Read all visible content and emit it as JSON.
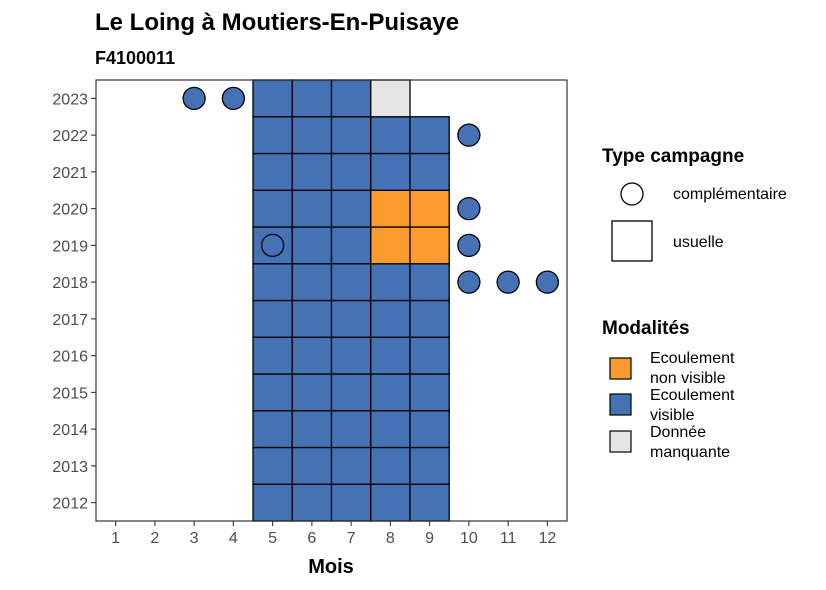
{
  "chart_data": {
    "type": "heatmap",
    "title": "Le Loing à Moutiers-En-Puisaye",
    "subtitle": "F4100011",
    "xlabel": "Mois",
    "ylabel": "",
    "x_ticks": [
      "1",
      "2",
      "3",
      "4",
      "5",
      "6",
      "7",
      "8",
      "9",
      "10",
      "11",
      "12"
    ],
    "y_ticks": [
      "2012",
      "2013",
      "2014",
      "2015",
      "2016",
      "2017",
      "2018",
      "2019",
      "2020",
      "2021",
      "2022",
      "2023"
    ],
    "xlim": [
      0.5,
      12.5
    ],
    "ylim": [
      2011.5,
      2023.5
    ],
    "grid": false,
    "legend_position": "right",
    "legend": {
      "campaign_title": "Type campagne",
      "campaign_items": [
        {
          "key": "complementaire",
          "label": "complémentaire"
        },
        {
          "key": "usuelle",
          "label": "usuelle"
        }
      ],
      "modality_title": "Modalités",
      "modality_items": [
        {
          "key": "ecoulement_non_visible",
          "line1": "Ecoulement",
          "line2": "non visible"
        },
        {
          "key": "ecoulement_visible",
          "line1": "Ecoulement",
          "line2": "visible"
        },
        {
          "key": "donnee_manquante",
          "line1": "Donnée",
          "line2": "manquante"
        }
      ]
    },
    "colors": {
      "ecoulement_visible": "#4472b4",
      "ecoulement_non_visible": "#fb9a2f",
      "donnee_manquante": "#e5e5e5"
    },
    "usuelle_cells": [
      {
        "year": 2012,
        "month": 5,
        "modality": "ecoulement_visible"
      },
      {
        "year": 2012,
        "month": 6,
        "modality": "ecoulement_visible"
      },
      {
        "year": 2012,
        "month": 7,
        "modality": "ecoulement_visible"
      },
      {
        "year": 2012,
        "month": 8,
        "modality": "ecoulement_visible"
      },
      {
        "year": 2012,
        "month": 9,
        "modality": "ecoulement_visible"
      },
      {
        "year": 2013,
        "month": 5,
        "modality": "ecoulement_visible"
      },
      {
        "year": 2013,
        "month": 6,
        "modality": "ecoulement_visible"
      },
      {
        "year": 2013,
        "month": 7,
        "modality": "ecoulement_visible"
      },
      {
        "year": 2013,
        "month": 8,
        "modality": "ecoulement_visible"
      },
      {
        "year": 2013,
        "month": 9,
        "modality": "ecoulement_visible"
      },
      {
        "year": 2014,
        "month": 5,
        "modality": "ecoulement_visible"
      },
      {
        "year": 2014,
        "month": 6,
        "modality": "ecoulement_visible"
      },
      {
        "year": 2014,
        "month": 7,
        "modality": "ecoulement_visible"
      },
      {
        "year": 2014,
        "month": 8,
        "modality": "ecoulement_visible"
      },
      {
        "year": 2014,
        "month": 9,
        "modality": "ecoulement_visible"
      },
      {
        "year": 2015,
        "month": 5,
        "modality": "ecoulement_visible"
      },
      {
        "year": 2015,
        "month": 6,
        "modality": "ecoulement_visible"
      },
      {
        "year": 2015,
        "month": 7,
        "modality": "ecoulement_visible"
      },
      {
        "year": 2015,
        "month": 8,
        "modality": "ecoulement_visible"
      },
      {
        "year": 2015,
        "month": 9,
        "modality": "ecoulement_visible"
      },
      {
        "year": 2016,
        "month": 5,
        "modality": "ecoulement_visible"
      },
      {
        "year": 2016,
        "month": 6,
        "modality": "ecoulement_visible"
      },
      {
        "year": 2016,
        "month": 7,
        "modality": "ecoulement_visible"
      },
      {
        "year": 2016,
        "month": 8,
        "modality": "ecoulement_visible"
      },
      {
        "year": 2016,
        "month": 9,
        "modality": "ecoulement_visible"
      },
      {
        "year": 2017,
        "month": 5,
        "modality": "ecoulement_visible"
      },
      {
        "year": 2017,
        "month": 6,
        "modality": "ecoulement_visible"
      },
      {
        "year": 2017,
        "month": 7,
        "modality": "ecoulement_visible"
      },
      {
        "year": 2017,
        "month": 8,
        "modality": "ecoulement_visible"
      },
      {
        "year": 2017,
        "month": 9,
        "modality": "ecoulement_visible"
      },
      {
        "year": 2018,
        "month": 5,
        "modality": "ecoulement_visible"
      },
      {
        "year": 2018,
        "month": 6,
        "modality": "ecoulement_visible"
      },
      {
        "year": 2018,
        "month": 7,
        "modality": "ecoulement_visible"
      },
      {
        "year": 2018,
        "month": 8,
        "modality": "ecoulement_visible"
      },
      {
        "year": 2018,
        "month": 9,
        "modality": "ecoulement_visible"
      },
      {
        "year": 2019,
        "month": 5,
        "modality": "ecoulement_visible"
      },
      {
        "year": 2019,
        "month": 6,
        "modality": "ecoulement_visible"
      },
      {
        "year": 2019,
        "month": 7,
        "modality": "ecoulement_visible"
      },
      {
        "year": 2019,
        "month": 8,
        "modality": "ecoulement_non_visible"
      },
      {
        "year": 2019,
        "month": 9,
        "modality": "ecoulement_non_visible"
      },
      {
        "year": 2020,
        "month": 5,
        "modality": "ecoulement_visible"
      },
      {
        "year": 2020,
        "month": 6,
        "modality": "ecoulement_visible"
      },
      {
        "year": 2020,
        "month": 7,
        "modality": "ecoulement_visible"
      },
      {
        "year": 2020,
        "month": 8,
        "modality": "ecoulement_non_visible"
      },
      {
        "year": 2020,
        "month": 9,
        "modality": "ecoulement_non_visible"
      },
      {
        "year": 2021,
        "month": 5,
        "modality": "ecoulement_visible"
      },
      {
        "year": 2021,
        "month": 6,
        "modality": "ecoulement_visible"
      },
      {
        "year": 2021,
        "month": 7,
        "modality": "ecoulement_visible"
      },
      {
        "year": 2021,
        "month": 8,
        "modality": "ecoulement_visible"
      },
      {
        "year": 2021,
        "month": 9,
        "modality": "ecoulement_visible"
      },
      {
        "year": 2022,
        "month": 5,
        "modality": "ecoulement_visible"
      },
      {
        "year": 2022,
        "month": 6,
        "modality": "ecoulement_visible"
      },
      {
        "year": 2022,
        "month": 7,
        "modality": "ecoulement_visible"
      },
      {
        "year": 2022,
        "month": 8,
        "modality": "ecoulement_visible"
      },
      {
        "year": 2022,
        "month": 9,
        "modality": "ecoulement_visible"
      },
      {
        "year": 2023,
        "month": 5,
        "modality": "ecoulement_visible"
      },
      {
        "year": 2023,
        "month": 6,
        "modality": "ecoulement_visible"
      },
      {
        "year": 2023,
        "month": 7,
        "modality": "ecoulement_visible"
      },
      {
        "year": 2023,
        "month": 8,
        "modality": "donnee_manquante"
      }
    ],
    "complementaire_points": [
      {
        "year": 2023,
        "month": 3,
        "modality": "ecoulement_visible"
      },
      {
        "year": 2023,
        "month": 4,
        "modality": "ecoulement_visible"
      },
      {
        "year": 2022,
        "month": 10,
        "modality": "ecoulement_visible"
      },
      {
        "year": 2020,
        "month": 10,
        "modality": "ecoulement_visible"
      },
      {
        "year": 2019,
        "month": 5,
        "modality": "ecoulement_visible"
      },
      {
        "year": 2019,
        "month": 10,
        "modality": "ecoulement_visible"
      },
      {
        "year": 2018,
        "month": 10,
        "modality": "ecoulement_visible"
      },
      {
        "year": 2018,
        "month": 11,
        "modality": "ecoulement_visible"
      },
      {
        "year": 2018,
        "month": 12,
        "modality": "ecoulement_visible"
      }
    ]
  }
}
